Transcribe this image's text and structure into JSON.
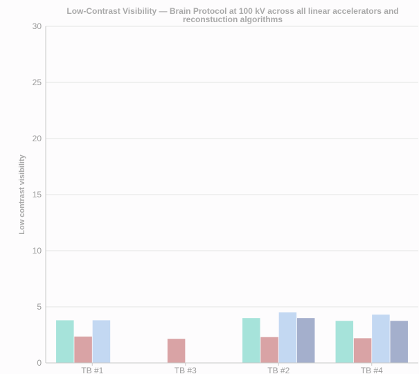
{
  "chart_data": {
    "type": "bar",
    "title_lines": [
      "Low-Contrast Visibility — Brain Protocol at 100 kV across all linear accelerators and",
      "reconstuction algorithms"
    ],
    "xlabel": "",
    "ylabel": "Low contrast visibility",
    "ylim": [
      0,
      30
    ],
    "yticks": [
      0,
      5,
      10,
      15,
      20,
      25,
      30
    ],
    "grid": true,
    "legend": "none",
    "categories": [
      "TB #1",
      "TB #3",
      "TB #2",
      "TB #4"
    ],
    "series": [
      {
        "color": "#a6e3da",
        "values": [
          3.8,
          null,
          4.0,
          3.75
        ]
      },
      {
        "color": "#d9a3a5",
        "values": [
          2.35,
          2.15,
          2.3,
          2.2
        ]
      },
      {
        "color": "#c3d8f2",
        "values": [
          3.8,
          null,
          4.5,
          4.3
        ]
      },
      {
        "color": "#a4afcc",
        "values": [
          null,
          null,
          4.0,
          3.75
        ]
      }
    ]
  }
}
